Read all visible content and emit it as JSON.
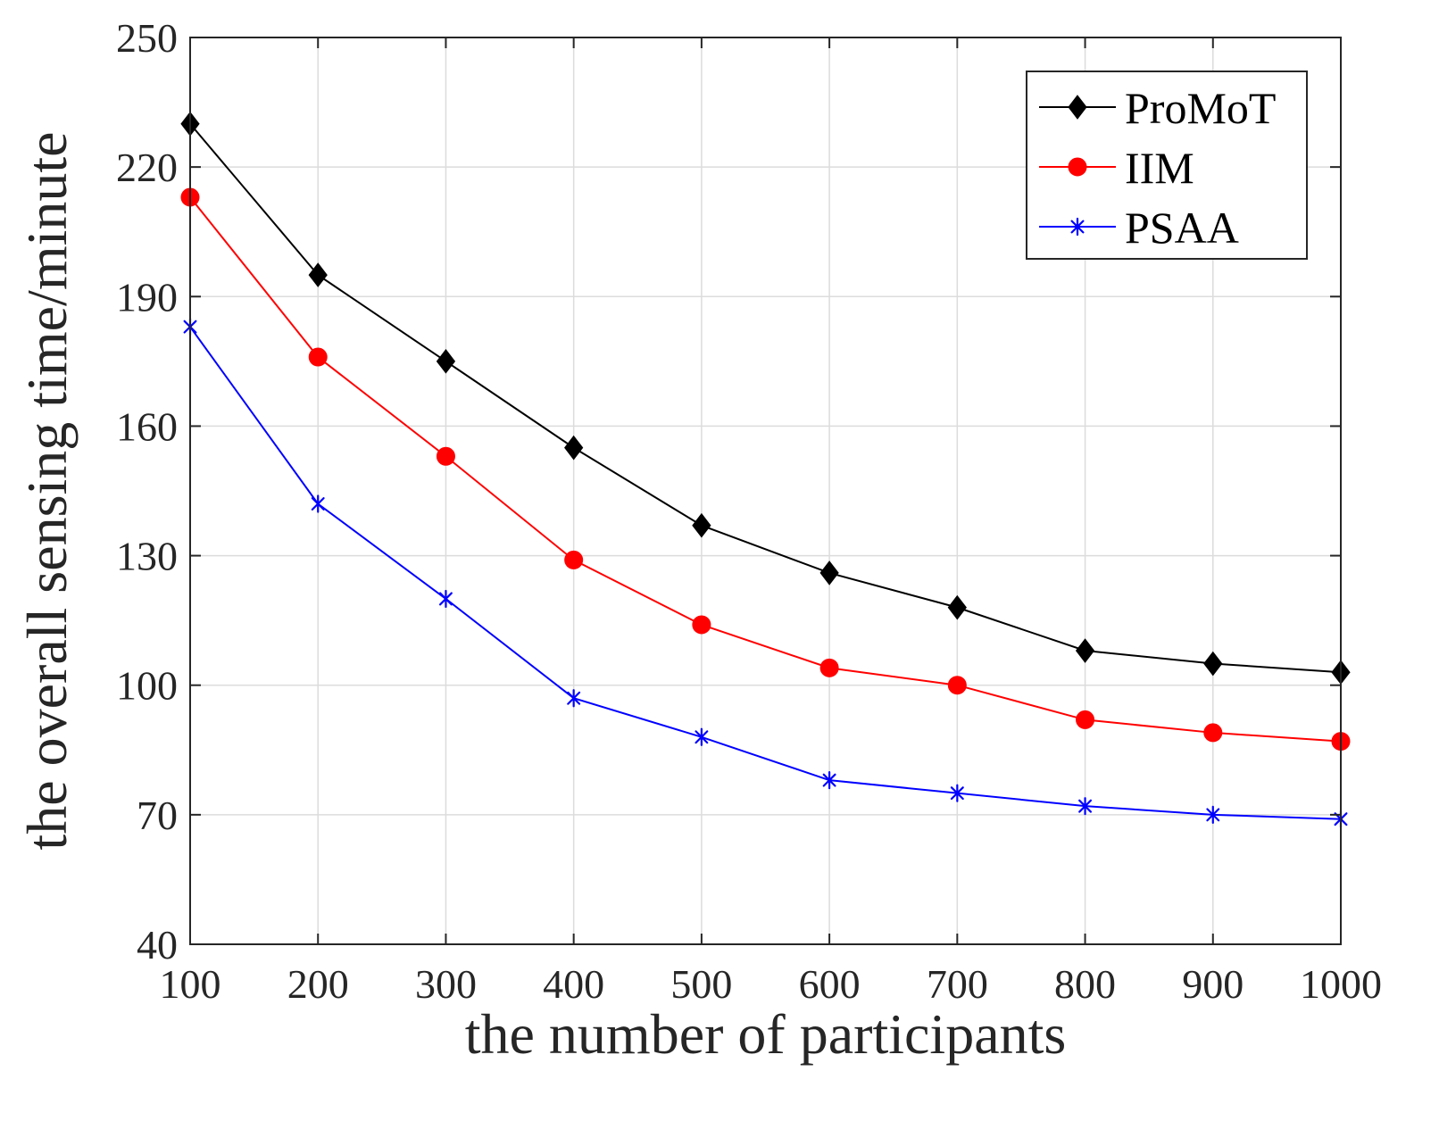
{
  "chart_data": {
    "type": "line",
    "title": "",
    "xlabel": "the number of participants",
    "ylabel": "the overall sensing time/minute",
    "x": [
      100,
      200,
      300,
      400,
      500,
      600,
      700,
      800,
      900,
      1000
    ],
    "xlim": [
      100,
      1000
    ],
    "ylim": [
      40,
      250
    ],
    "xticks": [
      100,
      200,
      300,
      400,
      500,
      600,
      700,
      800,
      900,
      1000
    ],
    "yticks": [
      40,
      70,
      100,
      130,
      160,
      190,
      220,
      250
    ],
    "grid": true,
    "legend_position": "top-right",
    "series": [
      {
        "name": "ProMoT",
        "color": "#000000",
        "marker": "diamond",
        "values": [
          230,
          195,
          175,
          155,
          137,
          126,
          118,
          108,
          105,
          103
        ]
      },
      {
        "name": "IIM",
        "color": "#ff0000",
        "marker": "circle",
        "values": [
          213,
          176,
          153,
          129,
          114,
          104,
          100,
          92,
          89,
          87
        ]
      },
      {
        "name": "PSAA",
        "color": "#0000ff",
        "marker": "asterisk",
        "values": [
          183,
          142,
          120,
          97,
          88,
          78,
          75,
          72,
          70,
          69
        ]
      }
    ]
  }
}
